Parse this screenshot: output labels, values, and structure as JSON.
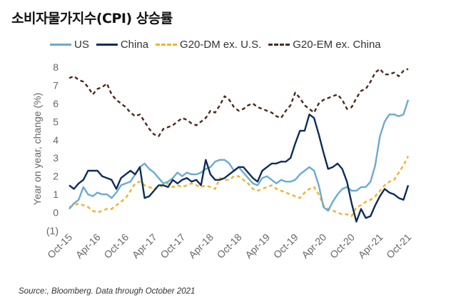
{
  "title": "소비자물가지수(CPI) 상승률",
  "source": "Source:, Bloomberg. Data through October 2021",
  "colors": {
    "US": "#6aabcf",
    "China": "#0e2c5a",
    "G20-DM ex. U.S.": "#f3b22a",
    "G20-EM ex. China": "#4a2a1c",
    "axis_text": "#666666"
  },
  "chart_data": {
    "type": "line",
    "title": "소비자물가지수(CPI) 상승률",
    "ylabel": "Year on year, change (%)",
    "xlabel": "",
    "ylim": [
      -1,
      8
    ],
    "yticks": [
      -1,
      0,
      1,
      2,
      3,
      4,
      5,
      6,
      7,
      8
    ],
    "ytick_labels": [
      "(1)",
      "0",
      "1",
      "2",
      "3",
      "4",
      "5",
      "6",
      "7",
      "8"
    ],
    "x_start": "Oct-15",
    "x_end": "Oct-21",
    "xtick_labels": [
      "Oct-15",
      "Apr-16",
      "Oct-16",
      "Apr-17",
      "Oct-17",
      "Apr-18",
      "Oct-18",
      "Apr-19",
      "Oct-19",
      "Apr-20",
      "Oct-20",
      "Apr-21",
      "Oct-21"
    ],
    "legend_position": "top",
    "grid": false,
    "series": [
      {
        "name": "US",
        "style": "solid",
        "values": [
          0.2,
          0.5,
          0.7,
          1.4,
          1.0,
          0.9,
          1.1,
          1.0,
          1.0,
          0.8,
          1.1,
          1.5,
          1.6,
          1.7,
          2.1,
          2.5,
          2.7,
          2.4,
          2.2,
          1.9,
          1.6,
          1.7,
          1.9,
          2.2,
          2.0,
          2.2,
          2.1,
          2.1,
          2.2,
          2.4,
          2.5,
          2.8,
          2.9,
          2.9,
          2.7,
          2.3,
          2.5,
          2.2,
          1.9,
          1.6,
          1.5,
          1.9,
          2.0,
          1.8,
          1.6,
          1.8,
          1.7,
          1.7,
          1.8,
          2.1,
          2.3,
          2.5,
          2.3,
          1.5,
          0.3,
          0.1,
          0.6,
          1.0,
          1.3,
          1.4,
          1.2,
          1.2,
          1.4,
          1.4,
          1.7,
          2.6,
          4.2,
          5.0,
          5.4,
          5.4,
          5.3,
          5.4,
          6.2
        ]
      },
      {
        "name": "China",
        "style": "solid",
        "values": [
          1.5,
          1.3,
          1.6,
          1.8,
          2.3,
          2.3,
          2.3,
          2.0,
          1.9,
          1.8,
          1.3,
          1.9,
          2.1,
          2.3,
          2.1,
          2.5,
          0.8,
          0.9,
          1.2,
          1.5,
          1.5,
          1.4,
          1.8,
          1.6,
          1.8,
          1.9,
          1.7,
          1.8,
          1.5,
          2.9,
          2.1,
          1.8,
          1.8,
          1.9,
          2.1,
          2.3,
          2.5,
          2.5,
          2.2,
          1.9,
          1.7,
          2.3,
          2.5,
          2.7,
          2.7,
          2.8,
          2.8,
          3.0,
          3.8,
          4.5,
          4.5,
          5.4,
          5.2,
          4.3,
          3.3,
          2.4,
          2.5,
          2.7,
          2.4,
          1.7,
          0.5,
          -0.5,
          0.2,
          -0.3,
          -0.2,
          0.4,
          0.9,
          1.3,
          1.1,
          1.0,
          0.8,
          0.7,
          1.5
        ]
      },
      {
        "name": "G20-DM ex. U.S.",
        "style": "dashed",
        "values": [
          0.3,
          0.4,
          0.5,
          0.4,
          0.3,
          0.1,
          0.0,
          0.1,
          0.2,
          0.2,
          0.4,
          0.6,
          0.8,
          1.2,
          1.6,
          1.7,
          1.5,
          1.4,
          1.3,
          1.4,
          1.5,
          1.6,
          1.4,
          1.5,
          1.4,
          1.5,
          1.6,
          1.5,
          1.4,
          1.5,
          1.4,
          1.3,
          1.9,
          1.8,
          1.8,
          2.0,
          2.0,
          1.8,
          1.6,
          1.3,
          1.2,
          1.3,
          1.4,
          1.5,
          1.3,
          1.2,
          1.1,
          1.0,
          0.9,
          0.8,
          1.1,
          1.3,
          1.4,
          1.0,
          0.4,
          0.2,
          0.1,
          0.0,
          -0.1,
          -0.1,
          -0.2,
          0.3,
          0.4,
          0.6,
          0.7,
          0.9,
          1.2,
          1.5,
          1.7,
          1.8,
          2.2,
          2.6,
          3.1
        ]
      },
      {
        "name": "G20-EM ex. China",
        "style": "dashed",
        "values": [
          7.4,
          7.5,
          7.3,
          7.2,
          6.9,
          6.5,
          6.8,
          6.9,
          7.1,
          6.5,
          6.2,
          6.0,
          5.8,
          5.5,
          5.3,
          5.4,
          5.0,
          4.6,
          4.3,
          4.2,
          4.6,
          4.7,
          4.8,
          5.0,
          5.2,
          5.1,
          4.9,
          4.8,
          5.0,
          5.2,
          5.6,
          5.5,
          5.9,
          6.4,
          6.2,
          5.8,
          5.6,
          5.7,
          5.9,
          6.0,
          5.8,
          5.7,
          5.6,
          5.5,
          5.3,
          5.2,
          5.6,
          5.9,
          6.6,
          6.3,
          5.9,
          5.7,
          5.5,
          6.0,
          6.2,
          6.3,
          6.4,
          6.5,
          6.2,
          5.7,
          5.8,
          6.3,
          6.7,
          6.8,
          7.2,
          7.7,
          7.9,
          7.6,
          7.6,
          7.7,
          7.5,
          7.8,
          7.9
        ]
      }
    ]
  }
}
